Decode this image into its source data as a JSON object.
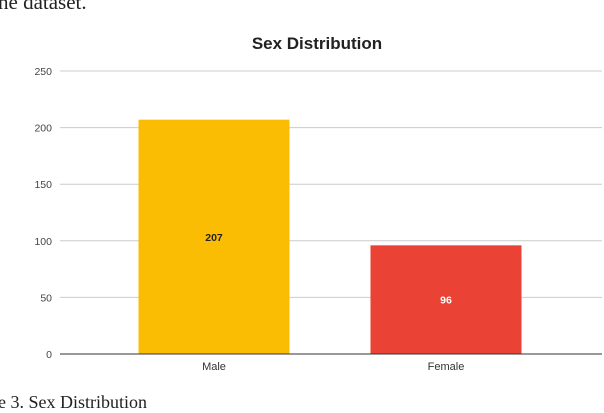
{
  "document": {
    "text_above": "he dataset.",
    "caption": "e 3. Sex Distribution"
  },
  "chart_data": {
    "type": "bar",
    "title": "Sex Distribution",
    "categories": [
      "Male",
      "Female"
    ],
    "values": [
      207,
      96
    ],
    "data_labels": [
      "207",
      "96"
    ],
    "bar_colors": [
      "#FBBC04",
      "#EA4335"
    ],
    "label_colors": [
      "#222222",
      "#FFFFFF"
    ],
    "yticks": [
      0,
      50,
      100,
      150,
      200,
      250
    ],
    "ylim": [
      0,
      250
    ],
    "xlabel": "",
    "ylabel": "",
    "grid": true,
    "gridline_color": "#CCCCCC",
    "legend": "none"
  }
}
